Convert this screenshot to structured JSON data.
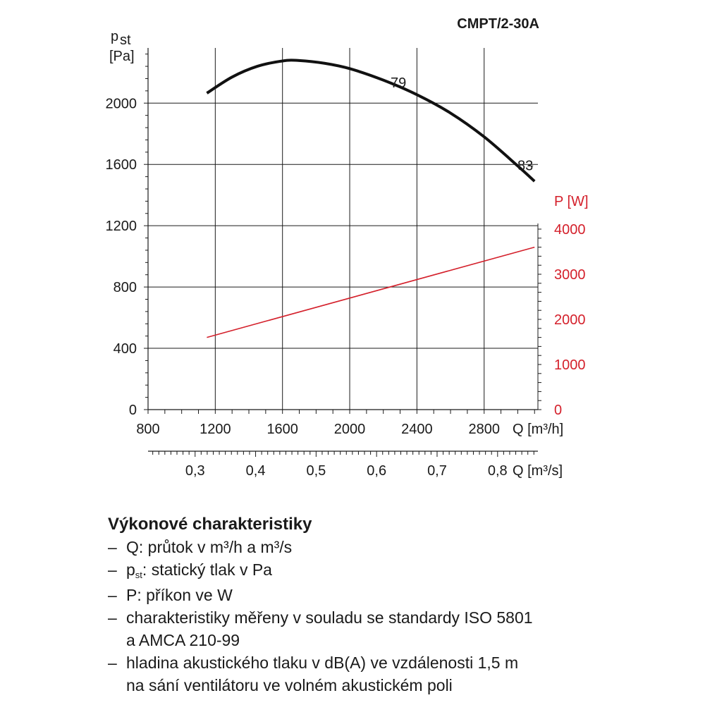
{
  "chart_data": {
    "type": "line",
    "title": "CMPT/2-30A",
    "x_axis": {
      "label": "Q [m³/h]",
      "range": [
        800,
        3120
      ],
      "ticks": [
        800,
        1200,
        1600,
        2000,
        2400,
        2800
      ],
      "tick_labels": [
        "800",
        "1200",
        "1600",
        "2000",
        "2400",
        "2800"
      ]
    },
    "x2_axis": {
      "label": "Q [m³/s]",
      "tick_labels": [
        "0,3",
        "0,4",
        "0,5",
        "0,6",
        "0,7",
        "0,8"
      ],
      "ticks": [
        0.3,
        0.4,
        0.5,
        0.6,
        0.7,
        0.8
      ]
    },
    "y_axis": {
      "label_symbol": "p",
      "label_sub": "st",
      "label_unit": "[Pa]",
      "range": [
        0,
        2360
      ],
      "ticks": [
        0,
        400,
        800,
        1200,
        1600,
        2000
      ],
      "tick_labels": [
        "0",
        "400",
        "800",
        "1200",
        "1600",
        "2000"
      ]
    },
    "y2_axis": {
      "label": "P [W]",
      "range": [
        0,
        4000
      ],
      "ticks": [
        0,
        1000,
        2000,
        3000,
        4000
      ],
      "tick_labels": [
        "0",
        "1000",
        "2000",
        "3000",
        "4000"
      ],
      "color": "#d4202b"
    },
    "grid": true,
    "series": [
      {
        "name": "pst",
        "axis": "left",
        "color": "#111111",
        "x": [
          1150,
          1300,
          1450,
          1600,
          1700,
          1850,
          2000,
          2200,
          2400,
          2600,
          2800,
          3000,
          3100
        ],
        "y": [
          2065,
          2170,
          2240,
          2275,
          2278,
          2260,
          2225,
          2150,
          2055,
          1935,
          1780,
          1590,
          1490
        ]
      },
      {
        "name": "P",
        "axis": "right",
        "color": "#d4202b",
        "x": [
          1150,
          3100
        ],
        "y": [
          1600,
          3600
        ]
      }
    ],
    "annotations": [
      {
        "text": "79",
        "x": 2350,
        "y": 2140
      },
      {
        "text": "83",
        "x": 3100,
        "y": 1590
      }
    ]
  },
  "notes": {
    "title": "Výkonové charakteristiky",
    "q_line": "Q: průtok v m³/h a m³/s",
    "pst_prefix": "p",
    "pst_sub": "st",
    "pst_rest": ": statický tlak v Pa",
    "p_line": "P: příkon ve W",
    "iso_line1": "charakteristiky měřeny v souladu se standardy ISO 5801",
    "iso_line2": "a AMCA 210-99",
    "noise_line1": "hladina akustického tlaku v dB(A) ve vzdálenosti 1,5 m",
    "noise_line2": "na sání ventilátoru ve volném akustickém poli"
  },
  "dash": "–"
}
